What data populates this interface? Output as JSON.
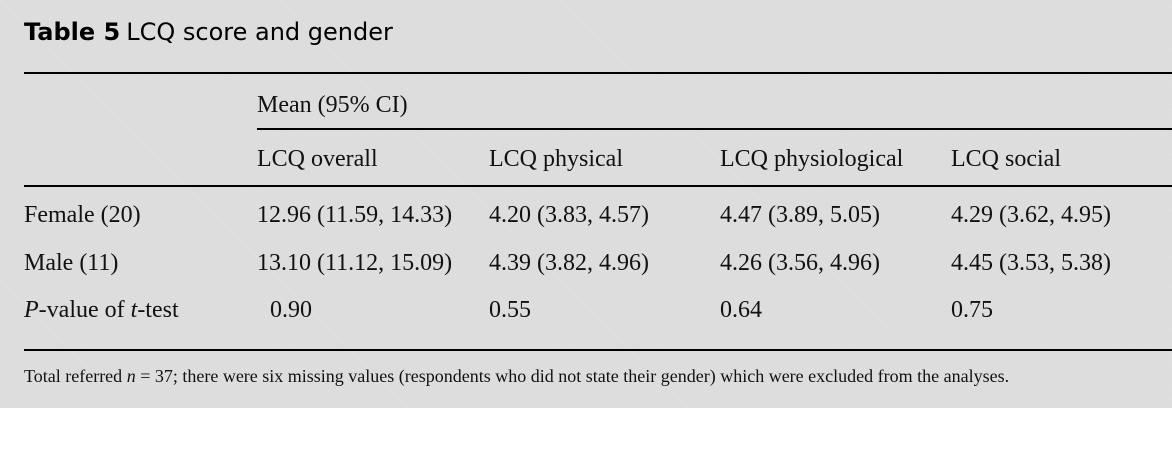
{
  "table": {
    "label": "Table 5",
    "caption": "LCQ score and gender",
    "group_header": "Mean (95% CI)",
    "columns": [
      "LCQ overall",
      "LCQ physical",
      "LCQ physiological",
      "LCQ social"
    ],
    "rows": [
      {
        "label": "Female (20)",
        "values": [
          "12.96 (11.59, 14.33)",
          "4.20 (3.83, 4.57)",
          "4.47 (3.89, 5.05)",
          "4.29 (3.62, 4.95)"
        ]
      },
      {
        "label": "Male (11)",
        "values": [
          "13.10 (11.12, 15.09)",
          "4.39 (3.82, 4.96)",
          "4.26 (3.56, 4.96)",
          "4.45 (3.53, 5.38)"
        ]
      }
    ],
    "pvalue_row": {
      "label_p": "P",
      "label_mid": "-value of ",
      "label_t": "t",
      "label_end": "-test",
      "values": [
        "0.90",
        "0.55",
        "0.64",
        "0.75"
      ]
    },
    "footnote": {
      "prefix": "Total referred ",
      "n": "n",
      "suffix": " = 37; there were six missing values (respondents who did not state their gender) which were excluded from the analyses."
    }
  }
}
